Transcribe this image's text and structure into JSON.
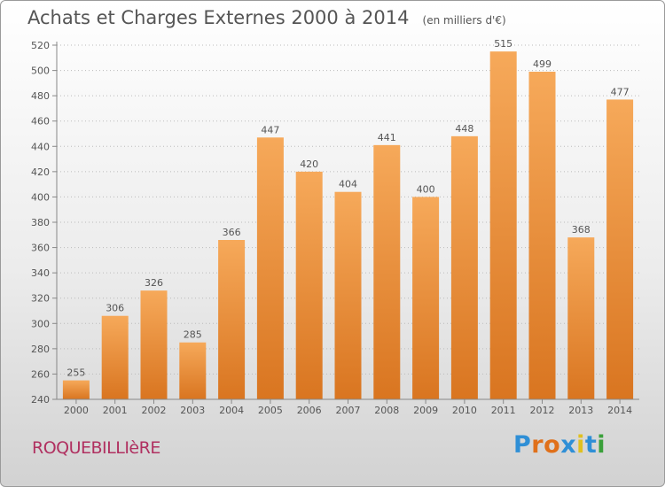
{
  "header": {
    "title": "Achats et Charges Externes 2000 à 2014",
    "unit": "(en milliers d'€)"
  },
  "footer": {
    "town": "ROQUEBILLIèRE",
    "logo": "Proxiti"
  },
  "colors": {
    "bar_top": "#f6a95a",
    "bar_bottom": "#d97520",
    "grid": "#bbbbbb",
    "text": "#555555",
    "town": "#b03060"
  },
  "chart_data": {
    "type": "bar",
    "title": "Achats et Charges Externes 2000 à 2014",
    "subtitle": "(en milliers d'€)",
    "xlabel": "",
    "ylabel": "",
    "categories": [
      "2000",
      "2001",
      "2002",
      "2003",
      "2004",
      "2005",
      "2006",
      "2007",
      "2008",
      "2009",
      "2010",
      "2011",
      "2012",
      "2013",
      "2014"
    ],
    "values": [
      255,
      306,
      326,
      285,
      366,
      447,
      420,
      404,
      441,
      400,
      448,
      515,
      499,
      368,
      477
    ],
    "ylim": [
      240,
      520
    ],
    "yticks": [
      240,
      260,
      280,
      300,
      320,
      340,
      360,
      380,
      400,
      420,
      440,
      460,
      480,
      500,
      520
    ],
    "grid": true,
    "grid_style": "dotted-horizontal",
    "data_labels": true
  }
}
